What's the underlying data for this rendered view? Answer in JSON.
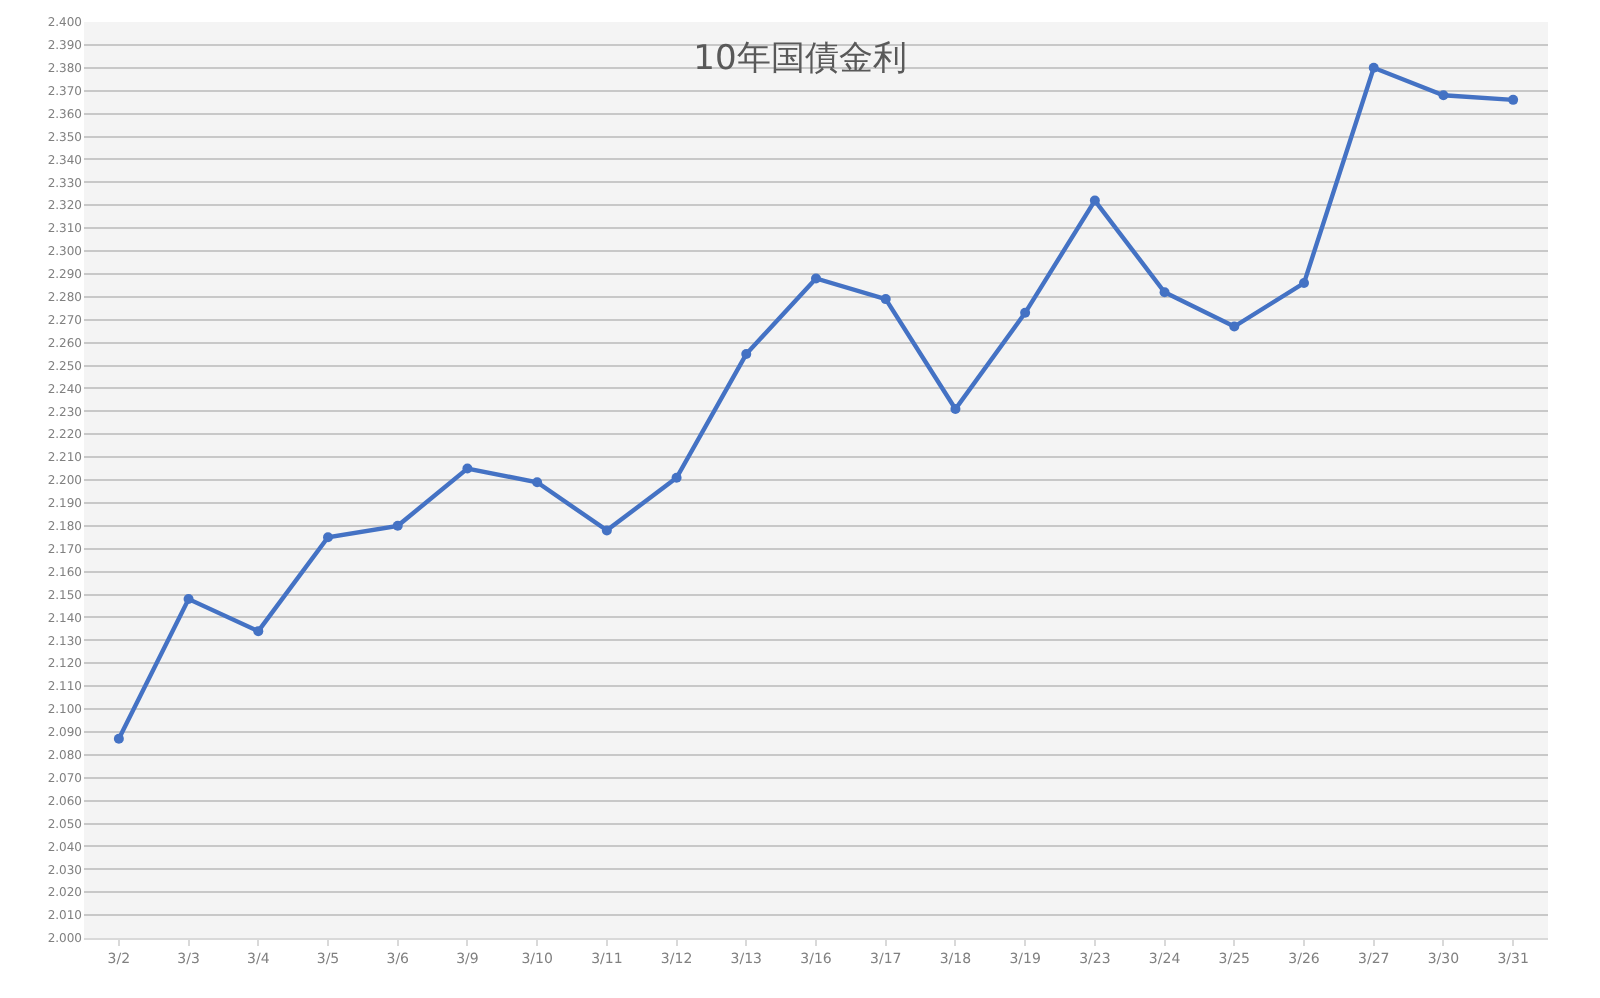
{
  "chart_data": {
    "type": "line",
    "title": "10年国債金利",
    "categories": [
      "3/2",
      "3/3",
      "3/4",
      "3/5",
      "3/6",
      "3/9",
      "3/10",
      "3/11",
      "3/12",
      "3/13",
      "3/16",
      "3/17",
      "3/18",
      "3/19",
      "3/23",
      "3/24",
      "3/25",
      "3/26",
      "3/27",
      "3/30",
      "3/31"
    ],
    "series": [
      {
        "color": "#4472c4",
        "values": [
          2.087,
          2.148,
          2.134,
          2.175,
          2.18,
          2.205,
          2.199,
          2.178,
          2.201,
          2.255,
          2.288,
          2.279,
          2.231,
          2.273,
          2.322,
          2.282,
          2.267,
          2.286,
          2.38,
          2.368,
          2.366
        ]
      }
    ],
    "ylim": [
      2.0,
      2.4
    ],
    "yticks": [
      {
        "value": 2.0,
        "label": "2.000"
      },
      {
        "value": 2.01,
        "label": "2.010"
      },
      {
        "value": 2.02,
        "label": "2.020"
      },
      {
        "value": 2.03,
        "label": "2.030"
      },
      {
        "value": 2.04,
        "label": "2.040"
      },
      {
        "value": 2.05,
        "label": "2.050"
      },
      {
        "value": 2.06,
        "label": "2.060"
      },
      {
        "value": 2.07,
        "label": "2.070"
      },
      {
        "value": 2.08,
        "label": "2.080"
      },
      {
        "value": 2.09,
        "label": "2.090"
      },
      {
        "value": 2.1,
        "label": "2.100"
      },
      {
        "value": 2.11,
        "label": "2.110"
      },
      {
        "value": 2.12,
        "label": "2.120"
      },
      {
        "value": 2.13,
        "label": "2.130"
      },
      {
        "value": 2.14,
        "label": "2.140"
      },
      {
        "value": 2.15,
        "label": "2.150"
      },
      {
        "value": 2.16,
        "label": "2.160"
      },
      {
        "value": 2.17,
        "label": "2.170"
      },
      {
        "value": 2.18,
        "label": "2.180"
      },
      {
        "value": 2.19,
        "label": "2.190"
      },
      {
        "value": 2.2,
        "label": "2.200"
      },
      {
        "value": 2.21,
        "label": "2.210"
      },
      {
        "value": 2.22,
        "label": "2.220"
      },
      {
        "value": 2.23,
        "label": "2.230"
      },
      {
        "value": 2.24,
        "label": "2.240"
      },
      {
        "value": 2.25,
        "label": "2.250"
      },
      {
        "value": 2.26,
        "label": "2.260"
      },
      {
        "value": 2.27,
        "label": "2.270"
      },
      {
        "value": 2.28,
        "label": "2.280"
      },
      {
        "value": 2.29,
        "label": "2.290"
      },
      {
        "value": 2.3,
        "label": "2.300"
      },
      {
        "value": 2.31,
        "label": "2.310"
      },
      {
        "value": 2.32,
        "label": "2.320"
      },
      {
        "value": 2.33,
        "label": "2.330"
      },
      {
        "value": 2.34,
        "label": "2.340"
      },
      {
        "value": 2.35,
        "label": "2.350"
      },
      {
        "value": 2.36,
        "label": "2.360"
      },
      {
        "value": 2.37,
        "label": "2.370"
      },
      {
        "value": 2.38,
        "label": "2.380"
      },
      {
        "value": 2.39,
        "label": "2.390"
      },
      {
        "value": 2.4,
        "label": "2.400"
      }
    ],
    "grid": "y",
    "marker": "circle",
    "line_style": "solid"
  }
}
